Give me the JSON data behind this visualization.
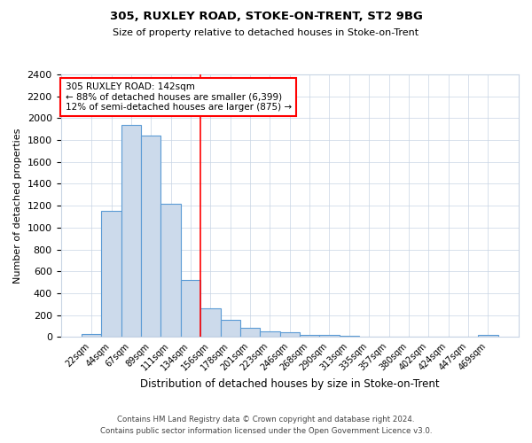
{
  "title1": "305, RUXLEY ROAD, STOKE-ON-TRENT, ST2 9BG",
  "title2": "Size of property relative to detached houses in Stoke-on-Trent",
  "xlabel": "Distribution of detached houses by size in Stoke-on-Trent",
  "ylabel": "Number of detached properties",
  "categories": [
    "22sqm",
    "44sqm",
    "67sqm",
    "89sqm",
    "111sqm",
    "134sqm",
    "156sqm",
    "178sqm",
    "201sqm",
    "223sqm",
    "246sqm",
    "268sqm",
    "290sqm",
    "313sqm",
    "335sqm",
    "357sqm",
    "380sqm",
    "402sqm",
    "424sqm",
    "447sqm",
    "469sqm"
  ],
  "values": [
    25,
    1155,
    1940,
    1840,
    1215,
    520,
    265,
    155,
    80,
    50,
    40,
    20,
    15,
    10,
    5,
    5,
    3,
    3,
    2,
    0,
    20
  ],
  "bar_color": "#ccdaeb",
  "bar_edge_color": "#5b9bd5",
  "red_line_x": 5.5,
  "annotation_text_line1": "305 RUXLEY ROAD: 142sqm",
  "annotation_text_line2": "← 88% of detached houses are smaller (6,399)",
  "annotation_text_line3": "12% of semi-detached houses are larger (875) →",
  "footer1": "Contains HM Land Registry data © Crown copyright and database right 2024.",
  "footer2": "Contains public sector information licensed under the Open Government Licence v3.0.",
  "ylim": [
    0,
    2400
  ],
  "background_color": "#ffffff",
  "grid_color": "#c8d4e4"
}
